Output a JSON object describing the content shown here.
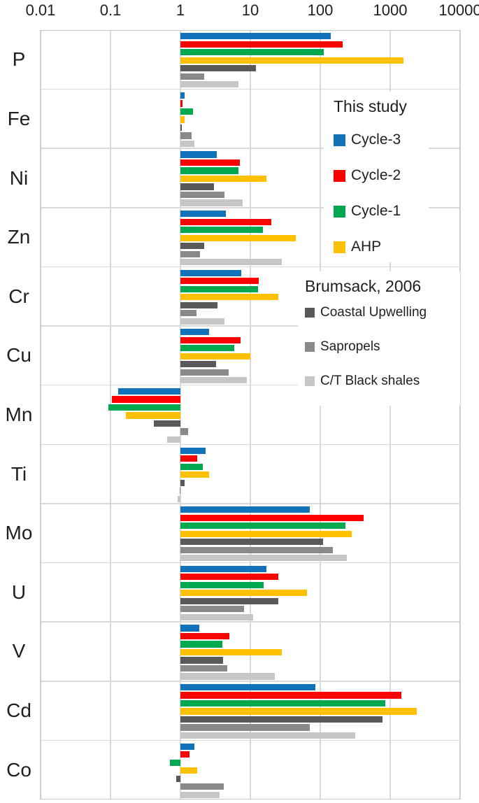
{
  "chart_data": {
    "type": "bar",
    "orientation": "horizontal",
    "x_scale": "log",
    "x_range": [
      0.01,
      10000
    ],
    "x_ticks": [
      "0.01",
      "0.1",
      "1",
      "10",
      "100",
      "1000",
      "10000"
    ],
    "x_tick_values": [
      0.01,
      0.1,
      1,
      10,
      100,
      1000,
      10000
    ],
    "baseline": 1,
    "grid": true,
    "categories": [
      "P",
      "Fe",
      "Ni",
      "Zn",
      "Cr",
      "Cu",
      "Mn",
      "Ti",
      "Mo",
      "U",
      "V",
      "Cd",
      "Co"
    ],
    "series": [
      {
        "name": "Cycle-3",
        "color": "#1172BA",
        "values": [
          140,
          1.15,
          3.3,
          4.5,
          7.4,
          2.6,
          0.13,
          2.3,
          70,
          17,
          1.85,
          86,
          1.6
        ]
      },
      {
        "name": "Cycle-2",
        "color": "#FF0000",
        "values": [
          210,
          1.08,
          7.0,
          20,
          13.3,
          7.3,
          0.105,
          1.75,
          420,
          25,
          5.0,
          1450,
          1.36
        ]
      },
      {
        "name": "Cycle-1",
        "color": "#00A850",
        "values": [
          112,
          1.5,
          6.7,
          15,
          13,
          5.9,
          0.093,
          2.1,
          230,
          15.5,
          4.0,
          860,
          0.7
        ]
      },
      {
        "name": "AHP",
        "color": "#FFC000",
        "values": [
          1550,
          1.16,
          17,
          45,
          25,
          10,
          0.165,
          2.55,
          280,
          64,
          28,
          2400,
          1.75
        ]
      },
      {
        "name": "Coastal Upwelling",
        "color": "#595959",
        "values": [
          12,
          1.05,
          3.0,
          2.2,
          3.4,
          3.2,
          0.42,
          1.15,
          110,
          25,
          4.1,
          770,
          0.87
        ]
      },
      {
        "name": "Sapropels",
        "color": "#898989",
        "values": [
          2.2,
          1.45,
          4.3,
          1.9,
          1.7,
          4.9,
          1.3,
          0.97,
          150,
          8.2,
          4.7,
          71,
          4.2
        ]
      },
      {
        "name": "C/T Black shales",
        "color": "#C6C6C6",
        "values": [
          6.7,
          1.6,
          7.8,
          28,
          4.3,
          8.9,
          0.65,
          0.92,
          240,
          11,
          22.5,
          315,
          3.65
        ]
      }
    ],
    "legend1": {
      "title": "This study",
      "items": [
        "Cycle-3",
        "Cycle-2",
        "Cycle-1",
        "AHP"
      ]
    },
    "legend2": {
      "title": "Brumsack, 2006",
      "items": [
        "Coastal Upwelling",
        "Sapropels",
        "C/T Black shales"
      ]
    },
    "legend_position": "inside-right"
  }
}
